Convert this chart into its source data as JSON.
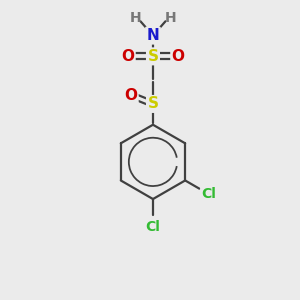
{
  "background_color": "#ebebeb",
  "bond_color": "#404040",
  "bond_lw": 1.6,
  "atoms": {
    "N": {
      "color": "#1a1acc",
      "fontsize": 11
    },
    "S": {
      "color": "#cccc00",
      "fontsize": 11
    },
    "O": {
      "color": "#cc0000",
      "fontsize": 11
    },
    "Cl": {
      "color": "#33bb33",
      "fontsize": 10
    },
    "H": {
      "color": "#777777",
      "fontsize": 10
    }
  },
  "figsize": [
    3.0,
    3.0
  ],
  "dpi": 100,
  "xlim": [
    0,
    10
  ],
  "ylim": [
    0,
    10
  ]
}
